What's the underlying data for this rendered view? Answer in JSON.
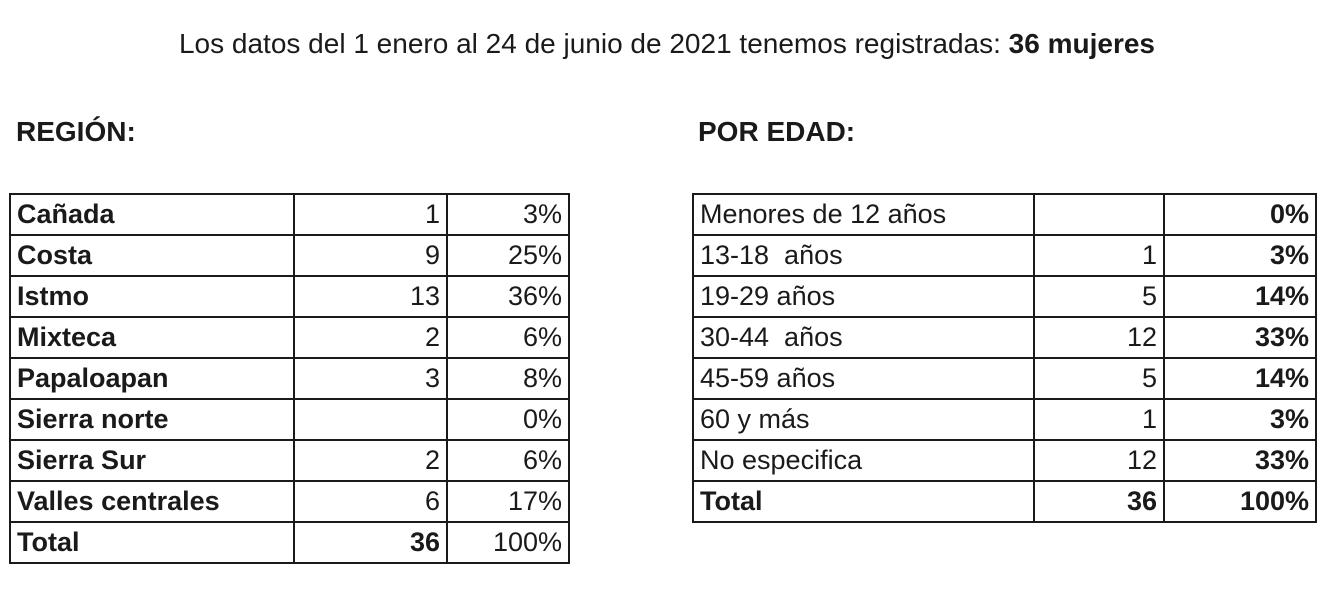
{
  "headline": {
    "text": "Los datos del 1 enero al 24 de junio de 2021 tenemos registradas:",
    "highlight": "36 mujeres"
  },
  "region": {
    "title": "REGIÓN:",
    "rows": [
      {
        "label": "Cañada",
        "count": "1",
        "pct": "3%"
      },
      {
        "label": "Costa",
        "count": "9",
        "pct": "25%"
      },
      {
        "label": "Istmo",
        "count": "13",
        "pct": "36%"
      },
      {
        "label": "Mixteca",
        "count": "2",
        "pct": "6%"
      },
      {
        "label": "Papaloapan",
        "count": "3",
        "pct": "8%"
      },
      {
        "label": "Sierra norte",
        "count": "",
        "pct": "0%"
      },
      {
        "label": "Sierra Sur",
        "count": "2",
        "pct": "6%"
      },
      {
        "label": "Valles centrales",
        "count": "6",
        "pct": "17%"
      }
    ],
    "total": {
      "label": "Total",
      "count": "36",
      "pct": "100%"
    }
  },
  "age": {
    "title": "POR EDAD:",
    "rows": [
      {
        "label": "Menores de 12 años",
        "count": "",
        "pct": "0%"
      },
      {
        "label": "13-18  años",
        "count": "1",
        "pct": "3%"
      },
      {
        "label": "19-29 años",
        "count": "5",
        "pct": "14%"
      },
      {
        "label": "30-44  años",
        "count": "12",
        "pct": "33%"
      },
      {
        "label": "45-59 años",
        "count": "5",
        "pct": "14%"
      },
      {
        "label": "60 y más",
        "count": "1",
        "pct": "3%"
      },
      {
        "label": "No especifica",
        "count": "12",
        "pct": "33%"
      }
    ],
    "total": {
      "label": "Total",
      "count": "36",
      "pct": "100%"
    }
  }
}
